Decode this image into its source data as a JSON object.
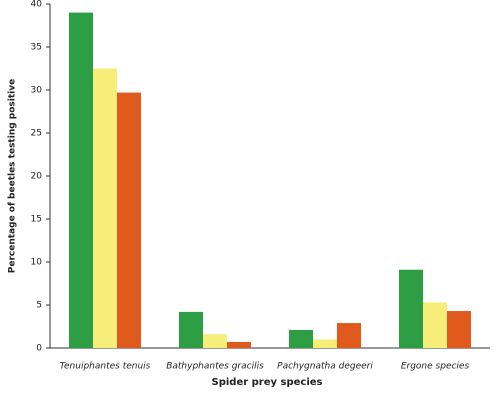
{
  "chart_data": {
    "type": "bar",
    "x_label": "Spider prey species",
    "y_label": "Percentage of beetles testing positive",
    "categories": [
      "Tenuiphantes tenuis",
      "Bathyphantes gracilis",
      "Pachygnatha degeeri",
      "Ergone species"
    ],
    "series": [
      {
        "color": "#2e9e44",
        "values": [
          39,
          4.2,
          2.1,
          9.1
        ]
      },
      {
        "color": "#f7ee7a",
        "values": [
          32.5,
          1.6,
          1.0,
          5.3
        ]
      },
      {
        "color": "#e05a1e",
        "values": [
          29.7,
          0.7,
          2.9,
          4.3
        ]
      }
    ],
    "ylim": [
      0,
      40
    ],
    "yticks": [
      0,
      5,
      10,
      15,
      20,
      25,
      30,
      35,
      40
    ],
    "grid": false
  }
}
